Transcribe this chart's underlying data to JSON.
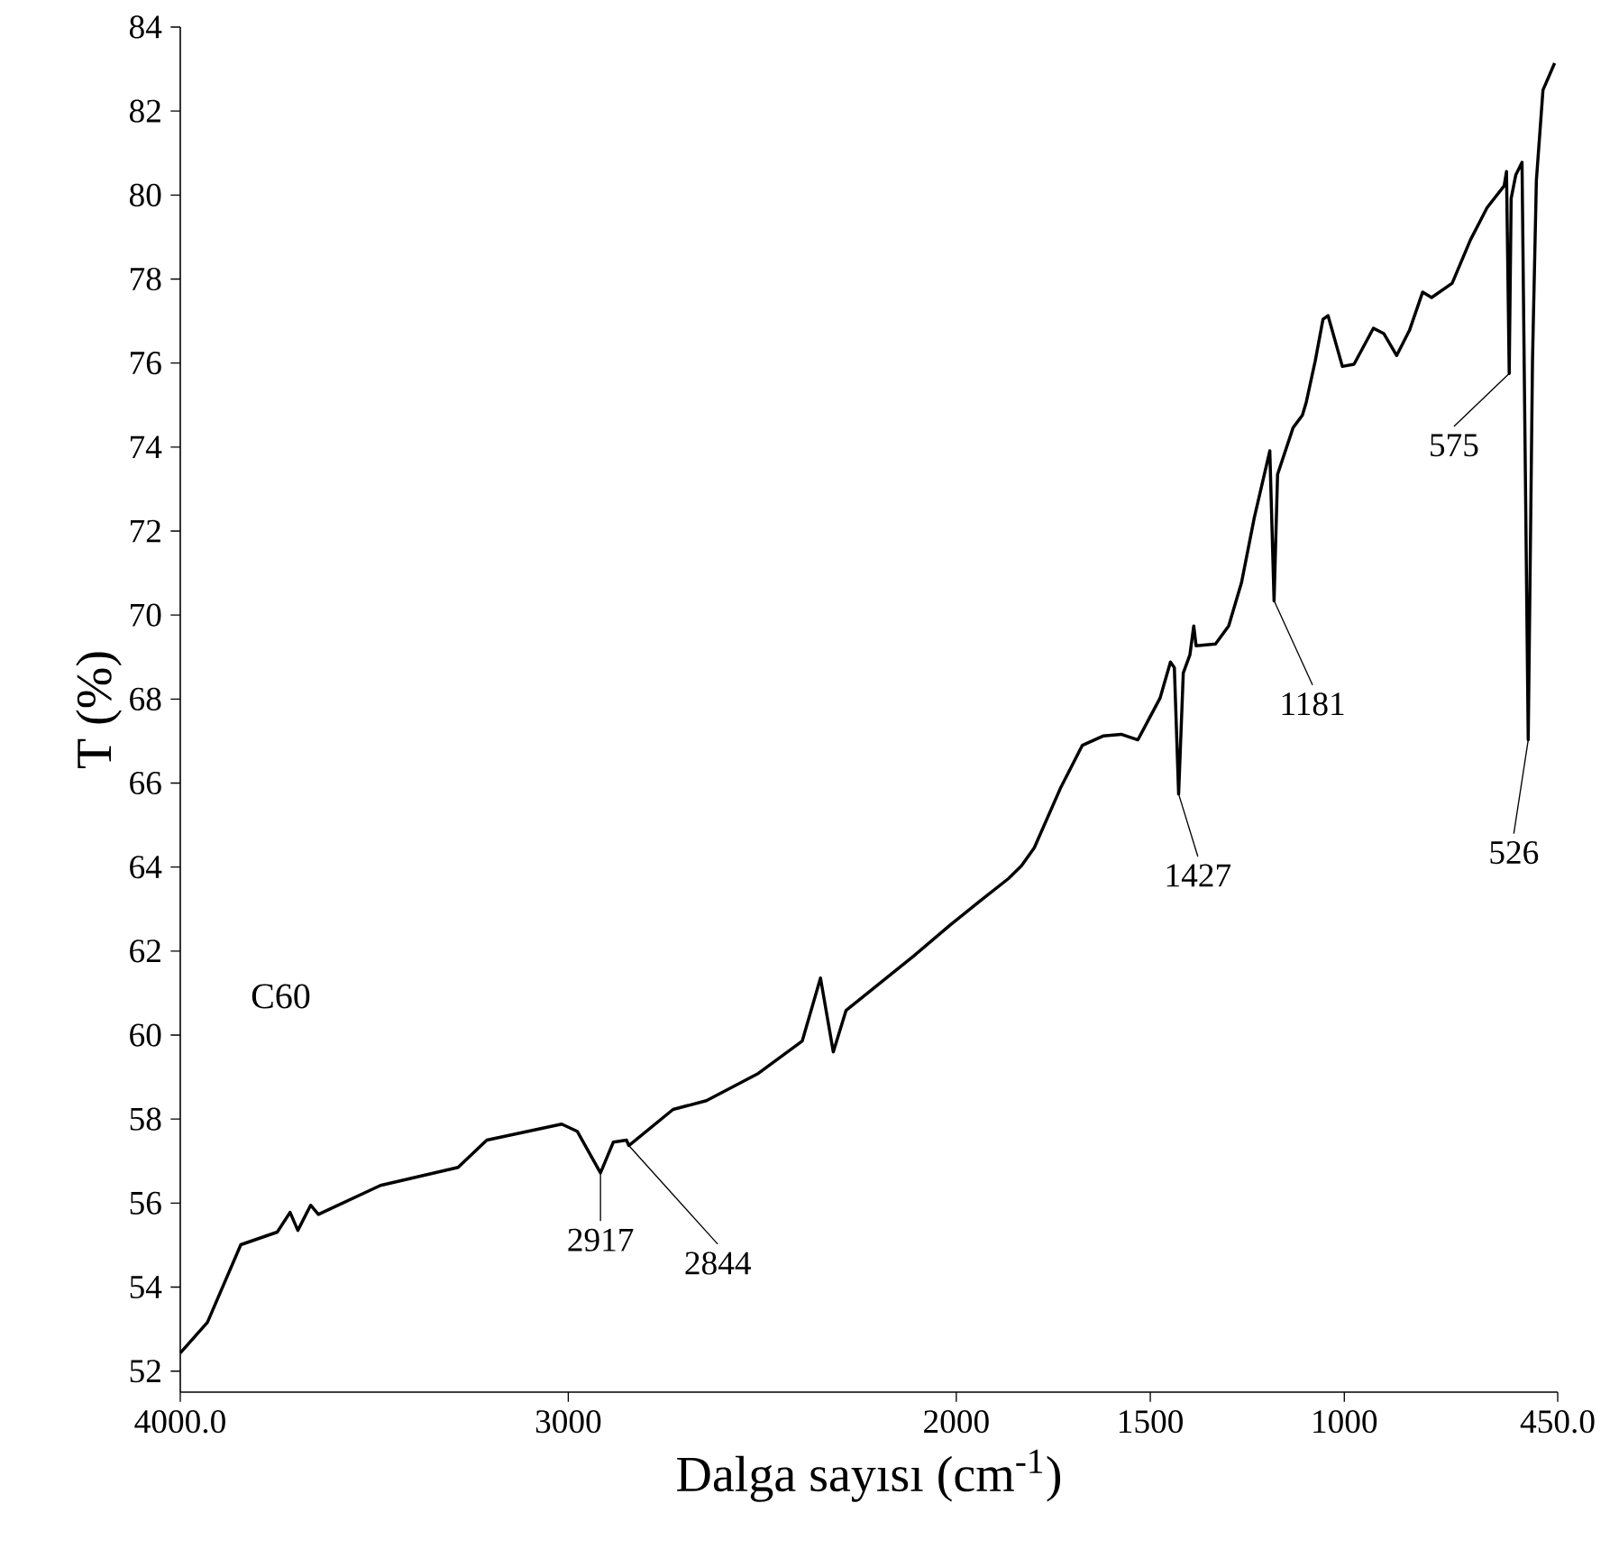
{
  "chart_data": {
    "type": "line",
    "xlabel": "Dalga sayısı (cm$^{-1}$)",
    "ylabel": "T (%)",
    "x": [
      4000,
      3930,
      3844,
      3750,
      3717,
      3697,
      3664,
      3644,
      3484,
      3284,
      3210,
      3017,
      2977,
      2917,
      2884,
      2850,
      2844,
      2730,
      2644,
      2510,
      2397,
      2350,
      2317,
      2284,
      2110,
      2017,
      1942,
      1865,
      1832,
      1799,
      1732,
      1675,
      1622,
      1575,
      1532,
      1475,
      1448,
      1438,
      1427,
      1415,
      1398,
      1388,
      1382,
      1332,
      1298,
      1265,
      1232,
      1192,
      1181,
      1172,
      1132,
      1108,
      1098,
      1075,
      1055,
      1042,
      1005,
      975,
      925,
      898,
      865,
      832,
      798,
      775,
      722,
      675,
      632,
      588,
      582,
      575,
      570,
      558,
      542,
      526,
      515,
      505,
      488,
      458
    ],
    "values": [
      52.43,
      53.16,
      55.01,
      55.31,
      55.78,
      55.35,
      55.95,
      55.73,
      56.42,
      56.85,
      57.5,
      57.88,
      57.71,
      56.72,
      57.45,
      57.5,
      57.37,
      58.23,
      58.44,
      59.09,
      59.86,
      61.36,
      59.6,
      60.59,
      61.88,
      62.61,
      63.17,
      63.73,
      64.03,
      64.46,
      65.87,
      66.9,
      67.12,
      67.16,
      67.03,
      68.02,
      68.88,
      68.75,
      65.74,
      68.62,
      69.05,
      69.74,
      69.27,
      69.31,
      69.74,
      70.77,
      72.32,
      73.91,
      70.34,
      73.35,
      74.46,
      74.76,
      75.07,
      76.05,
      77.04,
      77.13,
      75.92,
      75.97,
      76.83,
      76.7,
      76.18,
      76.78,
      77.69,
      77.56,
      77.9,
      78.93,
      79.7,
      80.22,
      80.56,
      75.75,
      79.92,
      80.48,
      80.78,
      67.03,
      76.05,
      80.35,
      82.5,
      83.14
    ],
    "color": "#000000",
    "xlim": [
      4000,
      450
    ],
    "ylim": [
      51.5,
      84
    ],
    "xticks": [
      {
        "value": 4000,
        "label": "4000.0"
      },
      3000,
      2000,
      1500,
      1000,
      {
        "value": 450,
        "label": "450.0"
      }
    ],
    "yticks": [
      52,
      54,
      56,
      58,
      60,
      62,
      64,
      66,
      68,
      70,
      72,
      74,
      76,
      78,
      80,
      82,
      84
    ],
    "annotations": [
      {
        "text": "2917",
        "x": 2917,
        "y": 56.72
      },
      {
        "text": "2844",
        "x": 2844,
        "y": 57.37
      },
      {
        "text": "1427",
        "x": 1427,
        "y": 65.74
      },
      {
        "text": "1181",
        "x": 1181,
        "y": 70.34
      },
      {
        "text": "575",
        "x": 575,
        "y": 75.75
      },
      {
        "text": "526",
        "x": 526,
        "y": 67.03
      },
      "C60"
    ]
  }
}
